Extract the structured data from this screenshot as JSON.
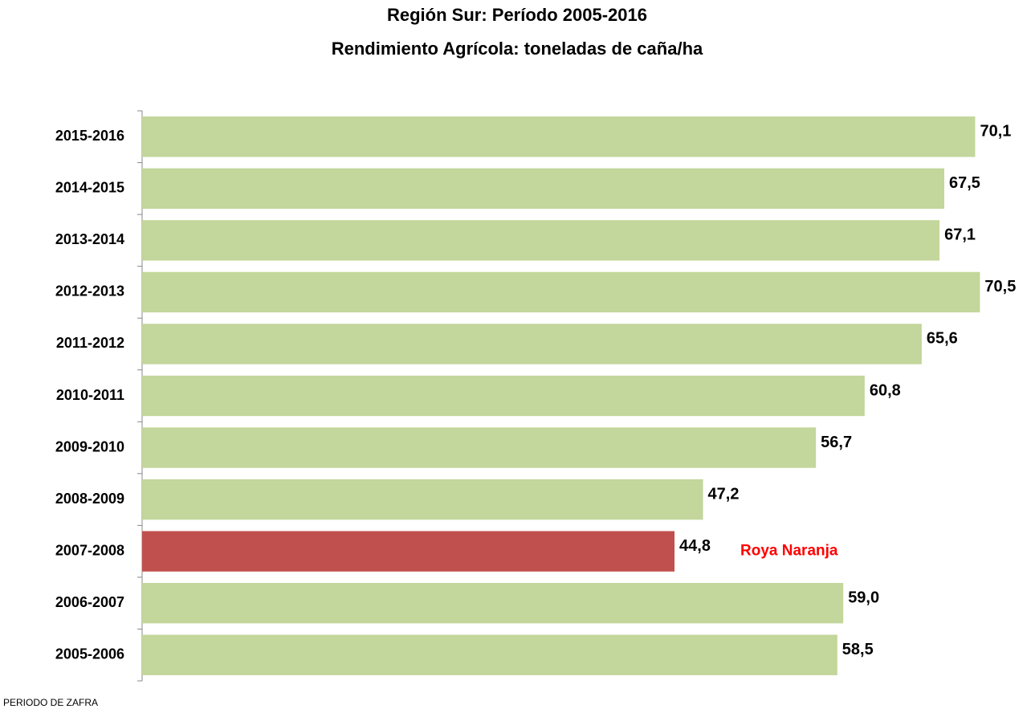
{
  "chart_data": {
    "type": "barh",
    "title": "Región Sur: Período 2005-2016",
    "subtitle": "Rendimiento Agrícola: toneladas de caña/ha",
    "y_label": "PERIODO DE ZAFRA",
    "annotation": "Roya Naranja",
    "categories": [
      "2015-2016",
      "2014-2015",
      "2013-2014",
      "2012-2013",
      "2011-2012",
      "2010-2011",
      "2009-2010",
      "2008-2009",
      "2007-2008",
      "2006-2007",
      "2005-2006"
    ],
    "values": [
      70.1,
      67.5,
      67.1,
      70.5,
      65.6,
      60.8,
      56.7,
      47.2,
      44.8,
      59.0,
      58.5
    ],
    "value_labels": [
      "70,1",
      "67,5",
      "67,1",
      "70,5",
      "65,6",
      "60,8",
      "56,7",
      "47,2",
      "44,8",
      "59,0",
      "58,5"
    ],
    "colors": [
      "#c3d69b",
      "#c3d69b",
      "#c3d69b",
      "#c3d69b",
      "#c3d69b",
      "#c3d69b",
      "#c3d69b",
      "#c3d69b",
      "#c0504d",
      "#c3d69b",
      "#c3d69b"
    ],
    "xlim": [
      0,
      75
    ]
  }
}
